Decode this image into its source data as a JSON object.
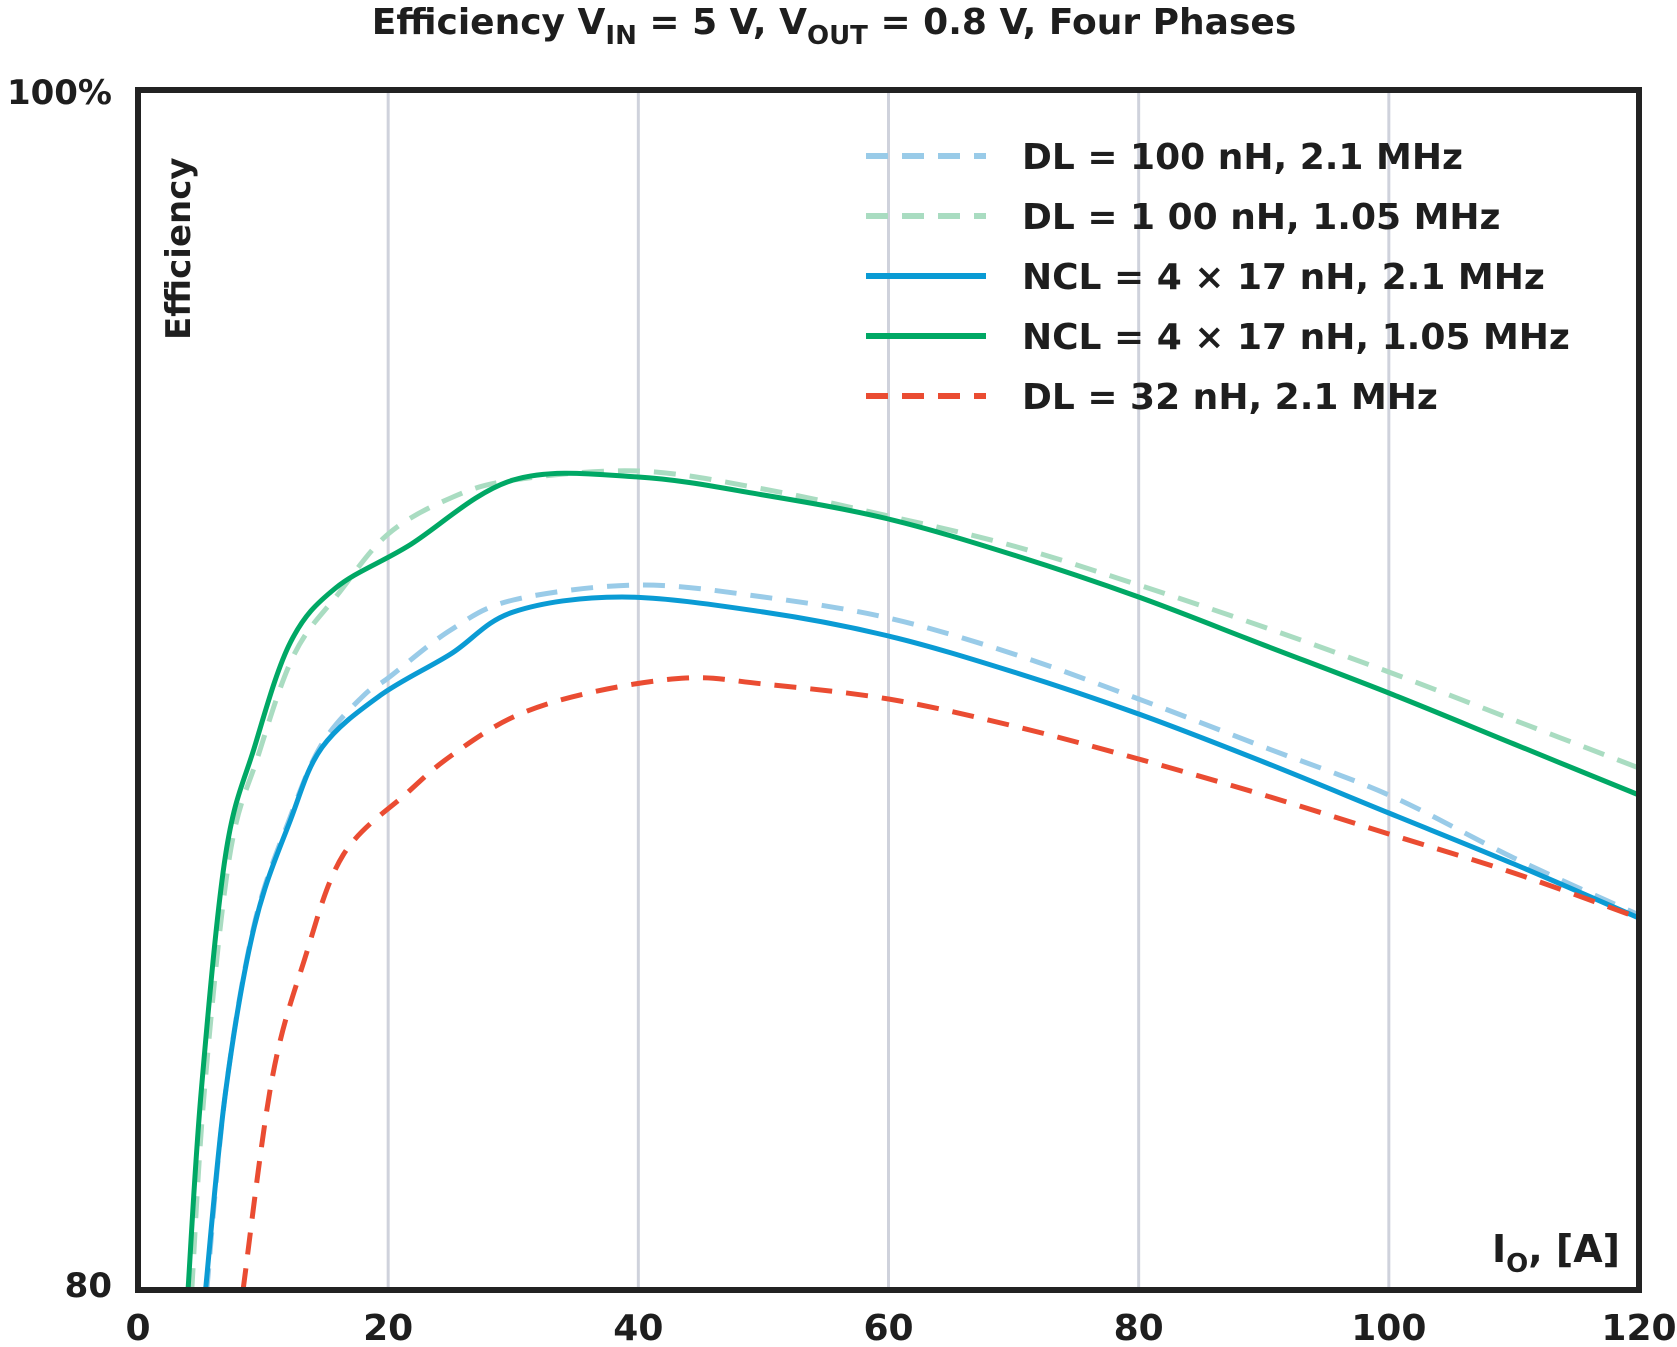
{
  "chart_data": {
    "type": "line",
    "title": {
      "main": "Efficiency V",
      "sub1": "IN",
      "mid": " = 5 V, V",
      "sub2": "OUT",
      "end": " = 0.8 V, Four Phases"
    },
    "ylabel": "Efficiency",
    "xlabel": {
      "main": "I",
      "sub": "O",
      "end": ", [A]"
    },
    "xlim": [
      0,
      120
    ],
    "ylim": [
      80,
      100
    ],
    "xticks": [
      0,
      20,
      40,
      60,
      80,
      100,
      120
    ],
    "xtick_labels": [
      "0",
      "20",
      "40",
      "60",
      "80",
      "100",
      "120"
    ],
    "ytick_labels": {
      "top": "100%",
      "bottom": "80"
    },
    "grid": "vertical",
    "legend_position": "top-right",
    "series": [
      {
        "name": "DL = 100 nH, 2.1 MHz",
        "color": "#99cbe8",
        "style": "dashed",
        "x": [
          5.5,
          7,
          9.3,
          12.2,
          14.7,
          18,
          20,
          25,
          30,
          40,
          50,
          60,
          70,
          80,
          90,
          100,
          110,
          120
        ],
        "y": [
          80,
          83.3,
          86.1,
          87.9,
          89.1,
          89.9,
          90.2,
          91.0,
          91.5,
          91.75,
          91.55,
          91.2,
          90.6,
          89.85,
          89.05,
          88.25,
          87.2,
          86.25
        ]
      },
      {
        "name": "DL = 1 00 nH, 1.05 MHz",
        "color": "#a9dcc1",
        "style": "dashed",
        "x": [
          4.3,
          5.3,
          7.3,
          9.6,
          12.5,
          16,
          20,
          25,
          30,
          40,
          50,
          60,
          70,
          80,
          90,
          100,
          110,
          120
        ],
        "y": [
          80,
          83.3,
          87.2,
          88.9,
          90.6,
          91.6,
          92.6,
          93.2,
          93.5,
          93.65,
          93.35,
          92.9,
          92.4,
          91.75,
          91.05,
          90.3,
          89.5,
          88.7
        ]
      },
      {
        "name": "NCL = 4 × 17 nH, 2.1 MHz",
        "color": "#0a9bd4",
        "style": "solid",
        "x": [
          5.4,
          7,
          9.3,
          12.2,
          14.7,
          19.3,
          25,
          30,
          38.7,
          50,
          60,
          70,
          80,
          90,
          100,
          110,
          120
        ],
        "y": [
          80,
          83.3,
          86.06,
          87.84,
          89.04,
          89.9,
          90.6,
          91.3,
          91.55,
          91.3,
          90.9,
          90.3,
          89.6,
          88.8,
          87.95,
          87.1,
          86.2
        ]
      },
      {
        "name": "NCL = 4 × 17 nH, 1.05 MHz",
        "color": "#00a865",
        "style": "solid",
        "x": [
          4.0,
          5.05,
          7.0,
          9.3,
          12.2,
          15.8,
          21.6,
          30,
          40,
          50,
          60,
          70,
          80,
          90,
          100,
          110,
          120
        ],
        "y": [
          80,
          83.3,
          87.25,
          89.04,
          90.8,
          91.7,
          92.4,
          93.5,
          93.55,
          93.25,
          92.85,
          92.25,
          91.55,
          90.75,
          89.95,
          89.1,
          88.25
        ]
      },
      {
        "name": "DL = 32 nH, 2.1 MHz",
        "color": "#ea4c32",
        "style": "dashed",
        "x": [
          8.4,
          10.7,
          13.3,
          16.4,
          21.6,
          25,
          30,
          36,
          43.8,
          50,
          60,
          70,
          80,
          90,
          100,
          110,
          120
        ],
        "y": [
          80,
          83.5,
          85.5,
          87.25,
          88.3,
          88.9,
          89.55,
          89.95,
          90.2,
          90.1,
          89.85,
          89.4,
          88.85,
          88.25,
          87.6,
          86.95,
          86.2
        ]
      }
    ]
  }
}
